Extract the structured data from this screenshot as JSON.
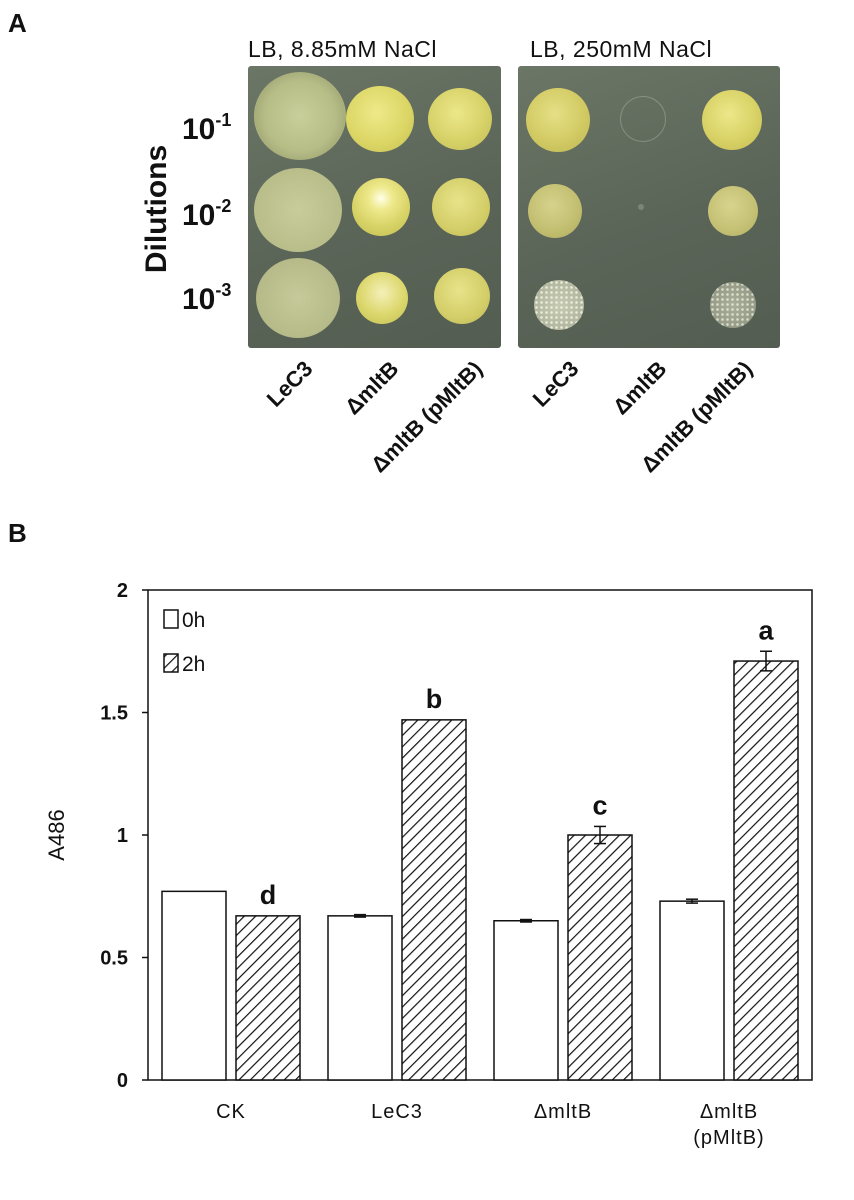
{
  "panel_a": {
    "label": "A",
    "y_axis_label": "Dilutions",
    "dilutions": [
      {
        "base": "10",
        "exp": "-1"
      },
      {
        "base": "10",
        "exp": "-2"
      },
      {
        "base": "10",
        "exp": "-3"
      }
    ],
    "plates": [
      {
        "title": "LB, 8.85mM NaCl",
        "strains": [
          "LeC3",
          "ΔmltB",
          "ΔmltB (pMltB)"
        ]
      },
      {
        "title": "LB, 250mM NaCl",
        "strains": [
          "LeC3",
          "ΔmltB",
          "ΔmltB (pMltB)"
        ]
      }
    ]
  },
  "panel_b": {
    "label": "B"
  },
  "chart_data": {
    "type": "bar",
    "categories": [
      "CK",
      "LeC3",
      "ΔmltB",
      "ΔmltB\n(pMltB)"
    ],
    "category_lines": [
      [
        "CK"
      ],
      [
        "LeC3"
      ],
      [
        "ΔmltB"
      ],
      [
        "ΔmltB",
        "(pMltB)"
      ]
    ],
    "series": [
      {
        "name": "0h",
        "values": [
          0.77,
          0.67,
          0.65,
          0.73
        ],
        "errors": [
          0,
          0.005,
          0.005,
          0.008
        ],
        "fill": "white"
      },
      {
        "name": "2h",
        "values": [
          0.67,
          1.47,
          1.0,
          1.71
        ],
        "errors": [
          0,
          0,
          0.035,
          0.04
        ],
        "fill": "hatched"
      }
    ],
    "significance_letters": [
      "d",
      "b",
      "c",
      "a"
    ],
    "ylabel": "A486",
    "xlabel": "",
    "ylim": [
      0,
      2
    ],
    "yticks": [
      0,
      0.5,
      1,
      1.5,
      2
    ],
    "ytick_labels": [
      "0",
      "0.5",
      "1",
      "1.5",
      "2"
    ],
    "legend_position": "top-left",
    "grid": false
  }
}
